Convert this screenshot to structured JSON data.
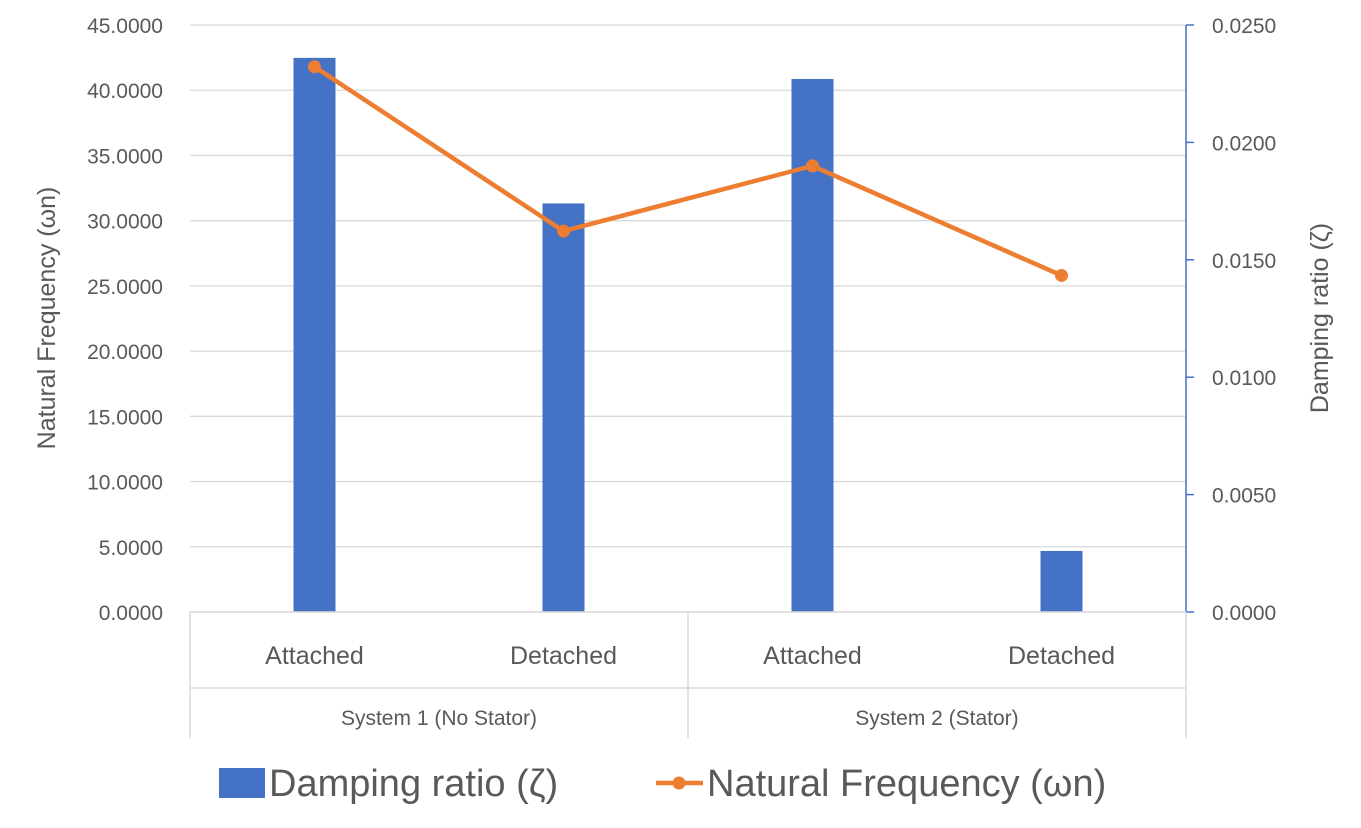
{
  "chart_data": {
    "type": "bar+line",
    "groups": [
      {
        "label": "System 1 (No Stator)",
        "categories": [
          "Attached",
          "Detached"
        ]
      },
      {
        "label": "System 2 (Stator)",
        "categories": [
          "Attached",
          "Detached"
        ]
      }
    ],
    "categories": [
      "Attached",
      "Detached",
      "Attached",
      "Detached"
    ],
    "series": [
      {
        "name": "Damping ratio (ζ)",
        "kind": "bar",
        "axis": "right",
        "color": "#4472C4",
        "values": [
          0.0236,
          0.0174,
          0.0227,
          0.0026
        ]
      },
      {
        "name": "Natural Frequency (ωn)",
        "kind": "line",
        "axis": "left",
        "color": "#ED7D31",
        "values": [
          41.8,
          29.2,
          34.2,
          25.8
        ]
      }
    ],
    "left_axis": {
      "label": "Natural Frequency (ωn)",
      "min": 0,
      "max": 45,
      "step": 5,
      "ticks": [
        "0.0000",
        "5.0000",
        "10.0000",
        "15.0000",
        "20.0000",
        "25.0000",
        "30.0000",
        "35.0000",
        "40.0000",
        "45.0000"
      ]
    },
    "right_axis": {
      "label": "Damping ratio (ζ)",
      "min": 0,
      "max": 0.025,
      "step": 0.005,
      "ticks": [
        "0.0000",
        "0.0050",
        "0.0100",
        "0.0150",
        "0.0200",
        "0.0250"
      ]
    },
    "grid": true,
    "legend_position": "bottom"
  }
}
